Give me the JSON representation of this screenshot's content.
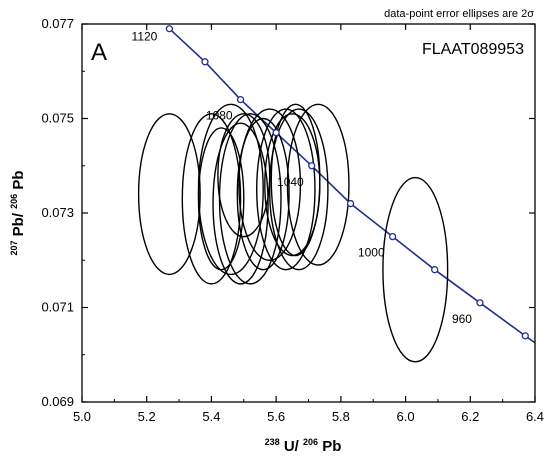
{
  "chart_data": {
    "type": "scatter",
    "subtype": "concordia-error-ellipses",
    "panel_letter": "A",
    "sample_id": "FLAAT089953",
    "note": "data-point error ellipses are 2σ",
    "xlabel": {
      "sup1": "238",
      "main1": "U/",
      "sup2": "206",
      "main2": "Pb"
    },
    "ylabel": {
      "sup1": "207",
      "main1": "Pb/",
      "sup2": "206",
      "main2": "Pb"
    },
    "xlim": [
      5.0,
      6.4
    ],
    "ylim": [
      0.069,
      0.077
    ],
    "xticks": [
      5.0,
      5.2,
      5.4,
      5.6,
      5.8,
      6.0,
      6.2,
      6.4
    ],
    "xtick_labels": [
      "5.0",
      "5.2",
      "5.4",
      "5.6",
      "5.8",
      "6.0",
      "6.2",
      "6.4"
    ],
    "yticks": [
      0.069,
      0.071,
      0.073,
      0.075,
      0.077
    ],
    "ytick_labels": [
      "0.069",
      "0.071",
      "0.073",
      "0.075",
      "0.077"
    ],
    "concordia_color": "#1f2f8f",
    "ellipse_color": "#000000",
    "concordia_points": [
      {
        "age": 1120,
        "x": 5.27,
        "y": 0.0769,
        "label": "1120"
      },
      {
        "age": 1100,
        "x": 5.38,
        "y": 0.0762,
        "label": ""
      },
      {
        "age": 1080,
        "x": 5.49,
        "y": 0.0754,
        "label": "1080"
      },
      {
        "age": 1060,
        "x": 5.6,
        "y": 0.0747,
        "label": ""
      },
      {
        "age": 1040,
        "x": 5.71,
        "y": 0.074,
        "label": "1040"
      },
      {
        "age": 1020,
        "x": 5.83,
        "y": 0.0732,
        "label": ""
      },
      {
        "age": 1000,
        "x": 5.96,
        "y": 0.0725,
        "label": "1000"
      },
      {
        "age": 980,
        "x": 6.09,
        "y": 0.0718,
        "label": ""
      },
      {
        "age": 960,
        "x": 6.23,
        "y": 0.0711,
        "label": "960"
      },
      {
        "age": 940,
        "x": 6.37,
        "y": 0.0704,
        "label": ""
      }
    ],
    "ellipses": [
      {
        "x": 5.27,
        "y": 0.0734,
        "sx": 0.095,
        "sy": 0.0017
      },
      {
        "x": 5.4,
        "y": 0.0733,
        "sx": 0.09,
        "sy": 0.0018
      },
      {
        "x": 5.46,
        "y": 0.0735,
        "sx": 0.1,
        "sy": 0.0018
      },
      {
        "x": 5.49,
        "y": 0.0732,
        "sx": 0.085,
        "sy": 0.0017
      },
      {
        "x": 5.43,
        "y": 0.0733,
        "sx": 0.07,
        "sy": 0.0015
      },
      {
        "x": 5.52,
        "y": 0.0733,
        "sx": 0.095,
        "sy": 0.0018
      },
      {
        "x": 5.5,
        "y": 0.0738,
        "sx": 0.08,
        "sy": 0.0013
      },
      {
        "x": 5.56,
        "y": 0.0734,
        "sx": 0.08,
        "sy": 0.0016
      },
      {
        "x": 5.58,
        "y": 0.0736,
        "sx": 0.095,
        "sy": 0.0016
      },
      {
        "x": 5.63,
        "y": 0.0735,
        "sx": 0.09,
        "sy": 0.0017
      },
      {
        "x": 5.65,
        "y": 0.0736,
        "sx": 0.085,
        "sy": 0.0015
      },
      {
        "x": 5.66,
        "y": 0.0737,
        "sx": 0.075,
        "sy": 0.0016
      },
      {
        "x": 5.67,
        "y": 0.0735,
        "sx": 0.09,
        "sy": 0.0017
      },
      {
        "x": 5.73,
        "y": 0.0736,
        "sx": 0.095,
        "sy": 0.0017
      },
      {
        "x": 6.03,
        "y": 0.0718,
        "sx": 0.1,
        "sy": 0.00195
      }
    ]
  }
}
